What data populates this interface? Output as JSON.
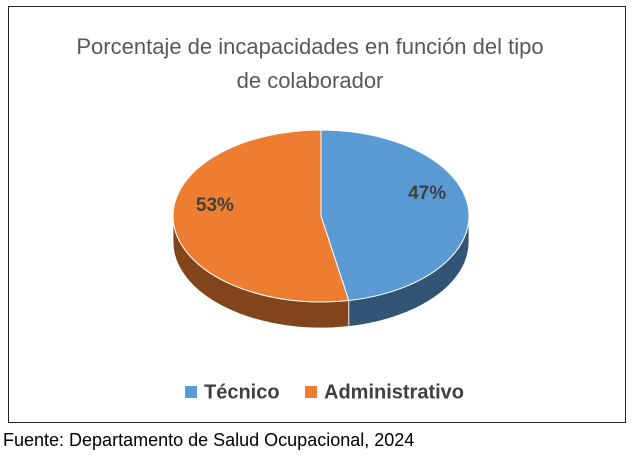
{
  "chart_data": {
    "type": "pie",
    "title": "Porcentaje de incapacidades en función del tipo de colaborador",
    "categories": [
      "Técnico",
      "Administrativo"
    ],
    "values": [
      47,
      53
    ],
    "value_labels": [
      "47%",
      "53%"
    ],
    "colors": [
      "#5b9bd5",
      "#ed7d31"
    ],
    "legend": "bottom",
    "source": "Fuente: Departamento de Salud Ocupacional, 2024"
  }
}
